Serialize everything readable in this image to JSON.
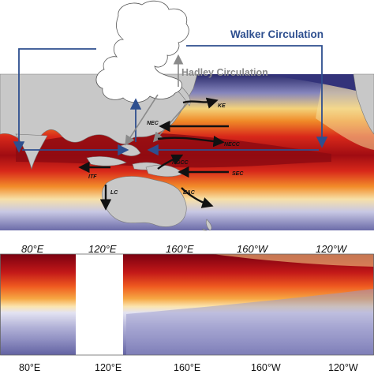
{
  "labels": {
    "walker": "Walker Circulation",
    "hadley": "Hadley Circulation"
  },
  "currents": {
    "ke": "KE",
    "nec": "NEC",
    "necc": "NECC",
    "ngcc": "NGCC",
    "sec": "SEC",
    "itf": "ITF",
    "lc": "LC",
    "eac": "EAC"
  },
  "axis_top": [
    "80°E",
    "120°E",
    "160°E",
    "160°W",
    "120°W"
  ],
  "axis_bottom": [
    "80°E",
    "120°E",
    "160°E",
    "160°W",
    "120°W"
  ],
  "colors": {
    "walker_arrow": "#2e4f8f",
    "hadley_arrow": "#8a8a8a",
    "land": "#c8c8c8",
    "warm_core": "#7a0010",
    "warm": "#e8401a",
    "cool": "#8c8cc0",
    "cloud": "#ffffff"
  }
}
